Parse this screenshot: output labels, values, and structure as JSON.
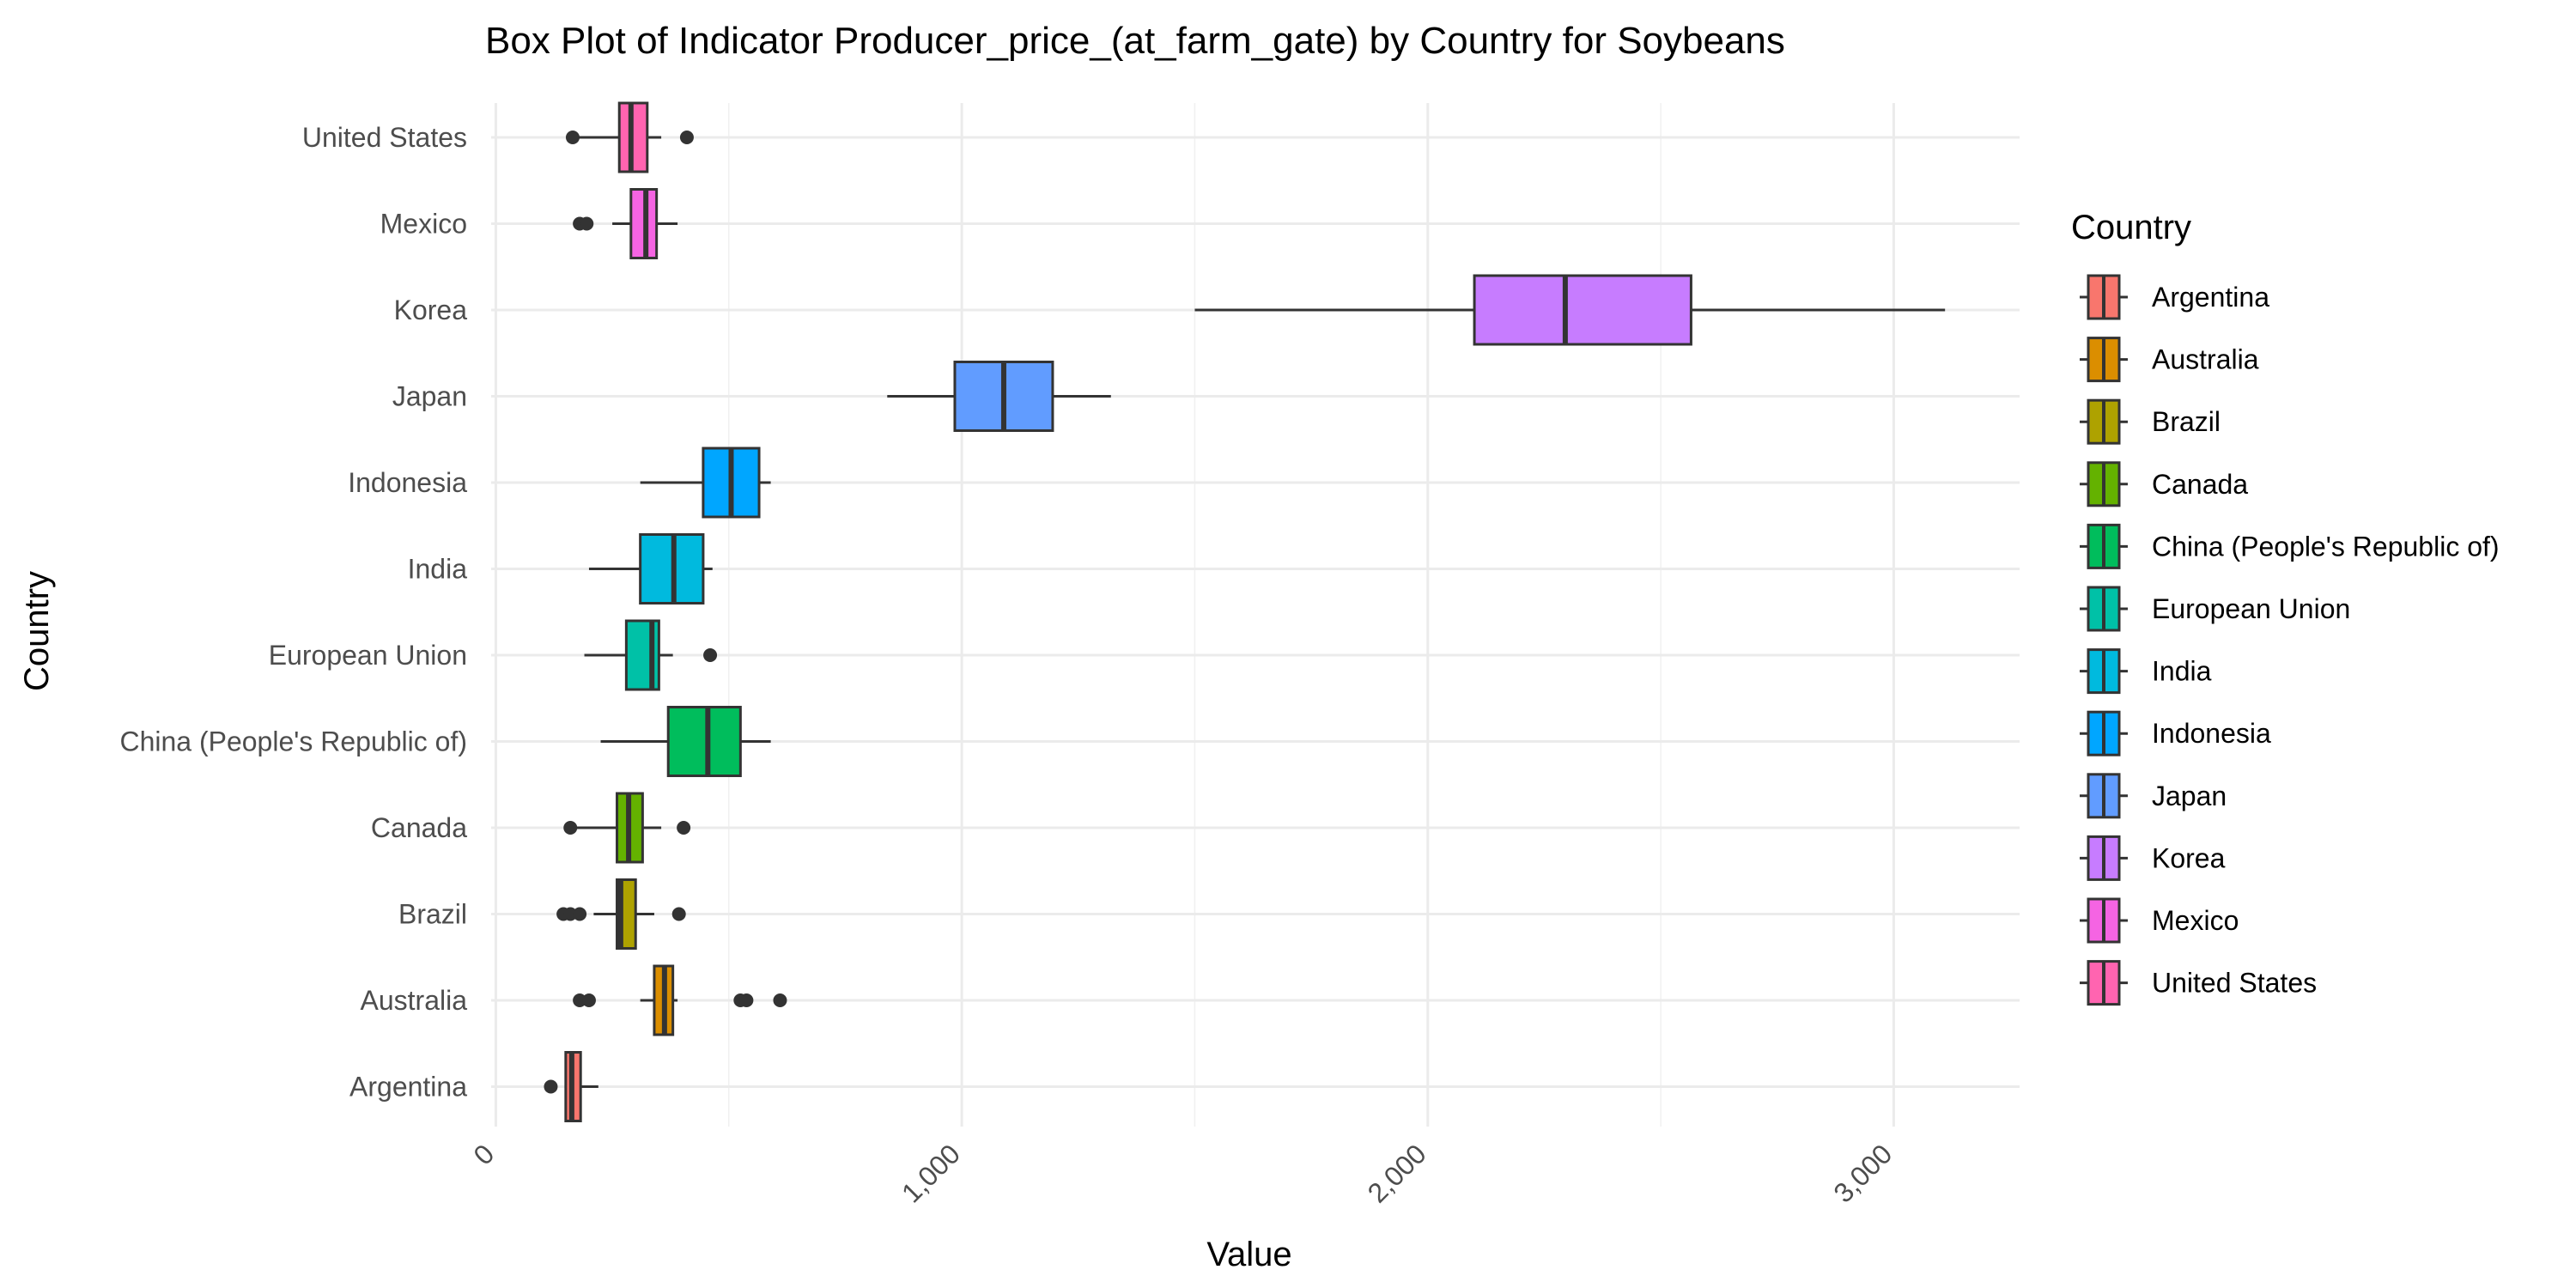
{
  "chart_data": {
    "type": "boxplot",
    "title": "Box Plot of Indicator Producer_price_(at_farm_gate) by Country for Soybeans",
    "xlabel": "Value",
    "ylabel": "Country",
    "xlim": [
      -10,
      3270
    ],
    "x_ticks": [
      0,
      1000,
      2000,
      3000
    ],
    "x_tick_labels": [
      "0",
      "1,000",
      "2,000",
      "3,000"
    ],
    "grid": true,
    "legend": {
      "title": "Country",
      "position": "right"
    },
    "categories": [
      "Argentina",
      "Australia",
      "Brazil",
      "Canada",
      "China (People's Republic of)",
      "European Union",
      "India",
      "Indonesia",
      "Japan",
      "Korea",
      "Mexico",
      "United States"
    ],
    "series": [
      {
        "name": "Argentina",
        "color": "#F8766D",
        "whisker_low": 150,
        "q1": 150,
        "median": 163,
        "q3": 182,
        "whisker_high": 220,
        "outliers": [
          118
        ]
      },
      {
        "name": "Australia",
        "color": "#DB8E00",
        "whisker_low": 310,
        "q1": 340,
        "median": 362,
        "q3": 380,
        "whisker_high": 390,
        "outliers": [
          180,
          200,
          525,
          538,
          610
        ]
      },
      {
        "name": "Brazil",
        "color": "#AEA200",
        "whisker_low": 210,
        "q1": 260,
        "median": 268,
        "q3": 300,
        "whisker_high": 340,
        "outliers": [
          145,
          160,
          180,
          393
        ]
      },
      {
        "name": "Canada",
        "color": "#64B200",
        "whisker_low": 160,
        "q1": 260,
        "median": 285,
        "q3": 315,
        "whisker_high": 355,
        "outliers": [
          160,
          403
        ]
      },
      {
        "name": "China (People's Republic of)",
        "color": "#00BD5C",
        "whisker_low": 225,
        "q1": 370,
        "median": 455,
        "q3": 525,
        "whisker_high": 590,
        "outliers": []
      },
      {
        "name": "European Union",
        "color": "#00C1A7",
        "whisker_low": 190,
        "q1": 280,
        "median": 335,
        "q3": 350,
        "whisker_high": 380,
        "outliers": [
          460
        ]
      },
      {
        "name": "India",
        "color": "#00BADE",
        "whisker_low": 200,
        "q1": 310,
        "median": 382,
        "q3": 445,
        "whisker_high": 465,
        "outliers": []
      },
      {
        "name": "Indonesia",
        "color": "#00A6FF",
        "whisker_low": 310,
        "q1": 445,
        "median": 505,
        "q3": 565,
        "whisker_high": 590,
        "outliers": []
      },
      {
        "name": "Japan",
        "color": "#619CFF",
        "whisker_low": 840,
        "q1": 985,
        "median": 1090,
        "q3": 1195,
        "whisker_high": 1320,
        "outliers": []
      },
      {
        "name": "Korea",
        "color": "#C77CFF",
        "whisker_low": 1500,
        "q1": 2100,
        "median": 2295,
        "q3": 2565,
        "whisker_high": 3110,
        "outliers": []
      },
      {
        "name": "Mexico",
        "color": "#F564E3",
        "whisker_low": 250,
        "q1": 290,
        "median": 322,
        "q3": 345,
        "whisker_high": 390,
        "outliers": [
          180,
          195
        ]
      },
      {
        "name": "United States",
        "color": "#FF64B0",
        "whisker_low": 165,
        "q1": 265,
        "median": 290,
        "q3": 325,
        "whisker_high": 355,
        "outliers": [
          165,
          410
        ]
      }
    ]
  }
}
